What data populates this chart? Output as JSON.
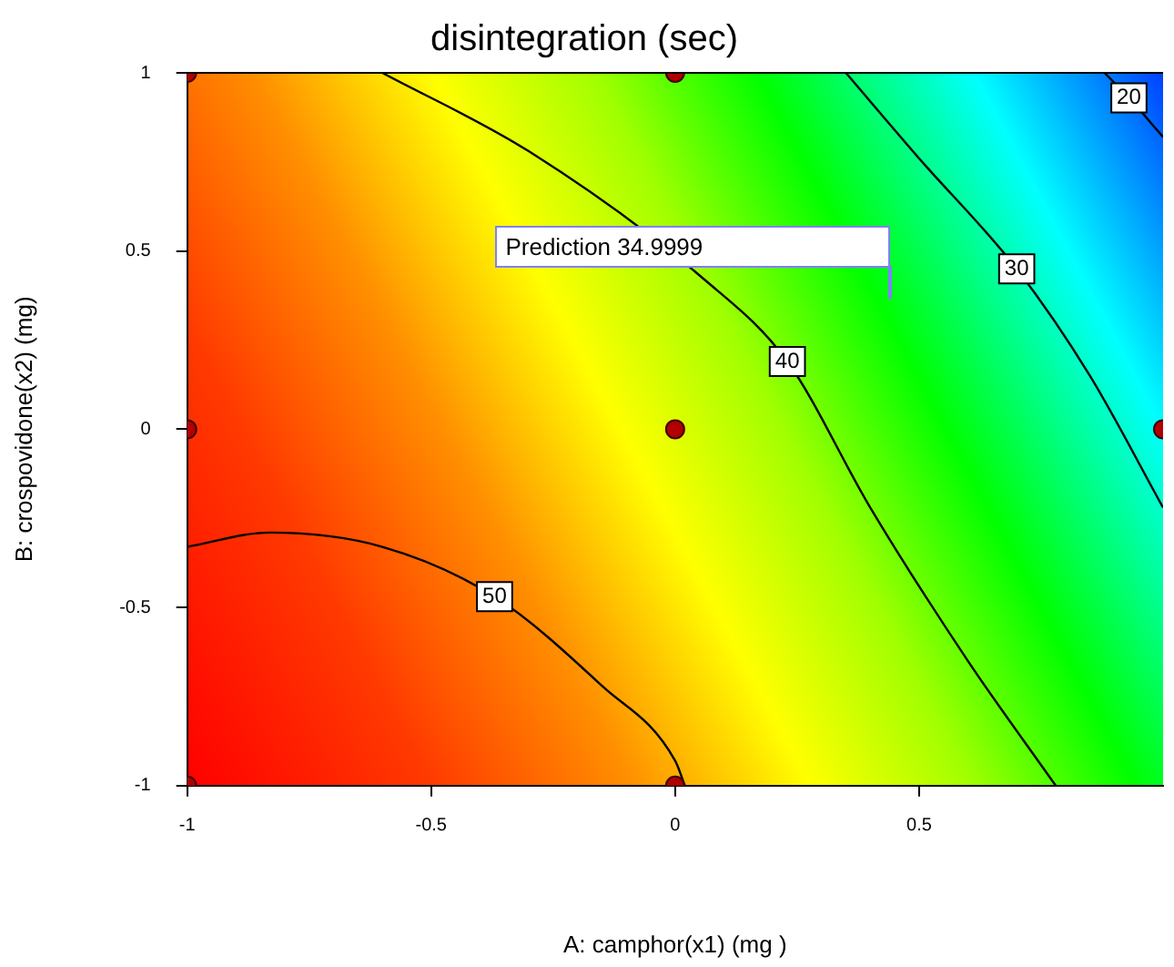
{
  "chart_data": {
    "type": "scatter",
    "title": "disintegration (sec)",
    "xlabel": "A: camphor(x1) (mg )",
    "ylabel": "B: crospovidone(x2) (mg)",
    "xlim": [
      -1,
      1
    ],
    "ylim": [
      -1,
      1
    ],
    "xticks": [
      -1,
      -0.5,
      0,
      0.5
    ],
    "yticks": [
      -1,
      -0.5,
      0,
      0.5,
      1
    ],
    "grid": false,
    "legend": false,
    "marker": "circle",
    "series": [
      {
        "color": "#b00000",
        "x": [
          -1,
          0,
          -1,
          0,
          -1,
          0,
          1
        ],
        "values": [
          -1,
          -1,
          0,
          0,
          1,
          1,
          0
        ]
      },
      {
        "type": "line",
        "name": "50",
        "color": "#000000",
        "marker": "none",
        "x": [
          -1,
          -0.83,
          -0.6,
          -0.37,
          -0.15,
          0,
          0.02
        ],
        "values": [
          -0.33,
          -0.29,
          -0.33,
          -0.47,
          -0.72,
          -0.93,
          -1
        ]
      },
      {
        "type": "line",
        "name": "40",
        "color": "#000000",
        "marker": "none",
        "x": [
          -0.6,
          -0.3,
          0.06,
          0.23,
          0.4,
          0.6,
          0.78
        ],
        "values": [
          1,
          0.78,
          0.42,
          0.19,
          -0.22,
          -0.65,
          -1
        ]
      },
      {
        "type": "line",
        "name": "30",
        "color": "#000000",
        "marker": "none",
        "x": [
          0.35,
          0.5,
          0.7,
          0.85,
          1
        ],
        "values": [
          1,
          0.76,
          0.45,
          0.15,
          -0.22
        ]
      },
      {
        "type": "line",
        "name": "20",
        "color": "#000000",
        "marker": "none",
        "x": [
          0.88,
          0.93,
          1
        ],
        "values": [
          1,
          0.93,
          0.82
        ]
      }
    ],
    "annotations": [
      "Prediction 34.9999"
    ]
  }
}
